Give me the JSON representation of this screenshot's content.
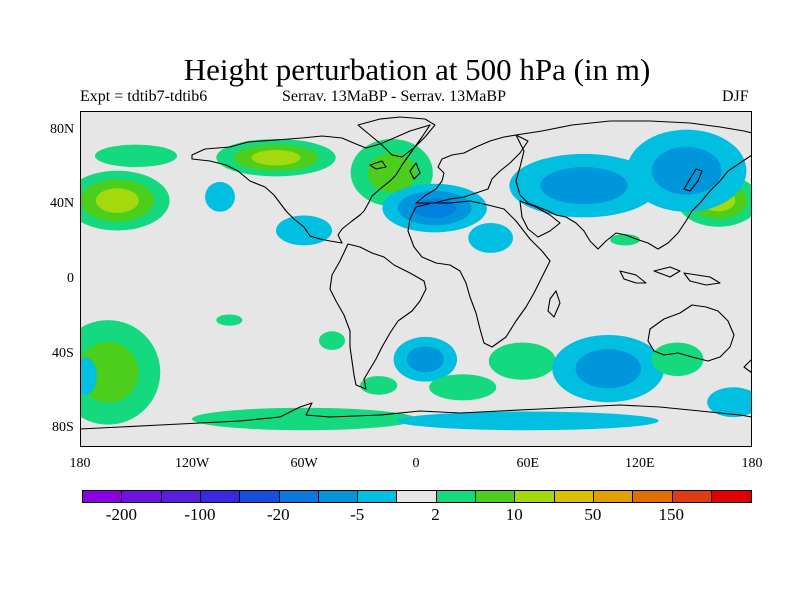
{
  "title": "Height perturbation at 500 hPa (in m)",
  "subtitle_left": "Expt = tdtib7-tdtib6",
  "subtitle_center": "Serrav.   13MaBP - Serrav.   13MaBP",
  "subtitle_right": "DJF",
  "map": {
    "projection": "equirectangular",
    "lon_range": [
      -180,
      180
    ],
    "lat_range": [
      -90,
      90
    ],
    "background_color": "#e6e6e6",
    "coast_color": "#000000",
    "x_ticks": [
      {
        "lon": -180,
        "label": "180"
      },
      {
        "lon": -120,
        "label": "120W"
      },
      {
        "lon": -60,
        "label": "60W"
      },
      {
        "lon": 0,
        "label": "0"
      },
      {
        "lon": 60,
        "label": "60E"
      },
      {
        "lon": 120,
        "label": "120E"
      },
      {
        "lon": 180,
        "label": "180"
      }
    ],
    "y_ticks": [
      {
        "lat": 80,
        "label": "80N"
      },
      {
        "lat": 40,
        "label": "40N"
      },
      {
        "lat": 0,
        "label": "0"
      },
      {
        "lat": -40,
        "label": "40S"
      },
      {
        "lat": -80,
        "label": "80S"
      }
    ],
    "anomalies": [
      {
        "lon": -160,
        "lat": 42,
        "rx": 28,
        "ry": 16,
        "levels": [
          "#14d97f",
          "#4ccf1c",
          "#a3d90d"
        ]
      },
      {
        "lon": 162,
        "lat": 42,
        "rx": 22,
        "ry": 14,
        "levels": [
          "#14d97f",
          "#4ccf1c",
          "#a3d90d"
        ]
      },
      {
        "lon": -75,
        "lat": 65,
        "rx": 32,
        "ry": 10,
        "levels": [
          "#14d97f",
          "#4ccf1c",
          "#a3d90d"
        ]
      },
      {
        "lon": -150,
        "lat": 66,
        "rx": 22,
        "ry": 6,
        "levels": [
          "#14d97f"
        ]
      },
      {
        "lon": -13,
        "lat": 57,
        "rx": 22,
        "ry": 18,
        "levels": [
          "#14d97f",
          "#4ccf1c"
        ]
      },
      {
        "lon": 10,
        "lat": 38,
        "rx": 28,
        "ry": 13,
        "levels": [
          "#00bfe0",
          "#0096dc",
          "#0081e0"
        ]
      },
      {
        "lon": 90,
        "lat": 50,
        "rx": 40,
        "ry": 17,
        "levels": [
          "#00bfe0",
          "#0096dc"
        ]
      },
      {
        "lon": 145,
        "lat": 58,
        "rx": 32,
        "ry": 22,
        "levels": [
          "#00bfe0",
          "#0096dc"
        ]
      },
      {
        "lon": -60,
        "lat": 26,
        "rx": 15,
        "ry": 8,
        "levels": [
          "#00bfe0"
        ]
      },
      {
        "lon": -105,
        "lat": 44,
        "rx": 8,
        "ry": 8,
        "levels": [
          "#00bfe0"
        ]
      },
      {
        "lon": 40,
        "lat": 22,
        "rx": 12,
        "ry": 8,
        "levels": [
          "#00bfe0"
        ]
      },
      {
        "lon": 112,
        "lat": 21,
        "rx": 8,
        "ry": 3,
        "levels": [
          "#14d97f"
        ]
      },
      {
        "lon": -165,
        "lat": -50,
        "rx": 28,
        "ry": 28,
        "levels": [
          "#14d97f",
          "#4ccf1c"
        ]
      },
      {
        "lon": -177,
        "lat": -52,
        "rx": 6,
        "ry": 10,
        "levels": [
          "#00bfe0"
        ]
      },
      {
        "lon": -100,
        "lat": -22,
        "rx": 7,
        "ry": 3,
        "levels": [
          "#14d97f"
        ]
      },
      {
        "lon": -45,
        "lat": -33,
        "rx": 7,
        "ry": 5,
        "levels": [
          "#14d97f"
        ]
      },
      {
        "lon": 5,
        "lat": -43,
        "rx": 17,
        "ry": 12,
        "levels": [
          "#00bfe0",
          "#0096dc"
        ]
      },
      {
        "lon": 57,
        "lat": -44,
        "rx": 18,
        "ry": 10,
        "levels": [
          "#14d97f"
        ]
      },
      {
        "lon": 103,
        "lat": -48,
        "rx": 30,
        "ry": 18,
        "levels": [
          "#00bfe0",
          "#0096dc"
        ]
      },
      {
        "lon": 140,
        "lat": -43,
        "rx": 14,
        "ry": 9,
        "levels": [
          "#14d97f"
        ]
      },
      {
        "lon": 25,
        "lat": -58,
        "rx": 18,
        "ry": 7,
        "levels": [
          "#14d97f"
        ]
      },
      {
        "lon": -20,
        "lat": -57,
        "rx": 10,
        "ry": 5,
        "levels": [
          "#14d97f"
        ]
      },
      {
        "lon": -60,
        "lat": -75,
        "rx": 60,
        "ry": 6,
        "levels": [
          "#14d97f"
        ]
      },
      {
        "lon": 60,
        "lat": -76,
        "rx": 70,
        "ry": 5,
        "levels": [
          "#00bfe0"
        ]
      },
      {
        "lon": 170,
        "lat": -66,
        "rx": 14,
        "ry": 8,
        "levels": [
          "#00bfe0"
        ]
      }
    ]
  },
  "colorbar": {
    "colors": [
      "#8a00e0",
      "#6d13e0",
      "#5a1ee0",
      "#3c28e0",
      "#1450e0",
      "#0a78e0",
      "#0096dc",
      "#00bfe0",
      "#e6e6e6",
      "#14d97f",
      "#4ccf1c",
      "#a3d90d",
      "#d9c000",
      "#e0a000",
      "#e06f00",
      "#e03c14",
      "#e00000"
    ],
    "labels": [
      {
        "text": "-200",
        "boundary": 1
      },
      {
        "text": "-100",
        "boundary": 3
      },
      {
        "text": "-20",
        "boundary": 5
      },
      {
        "text": "-5",
        "boundary": 7
      },
      {
        "text": "2",
        "boundary": 9
      },
      {
        "text": "10",
        "boundary": 11
      },
      {
        "text": "50",
        "boundary": 13
      },
      {
        "text": "150",
        "boundary": 15
      }
    ]
  }
}
